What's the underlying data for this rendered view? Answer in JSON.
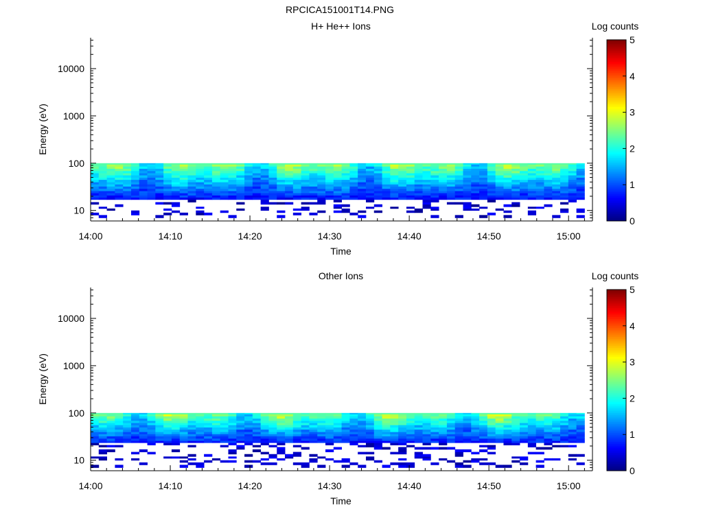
{
  "figure_title": "RPCICA151001T14.PNG",
  "colorscale": [
    "#00007f",
    "#0000ff",
    "#007fff",
    "#00ffff",
    "#7fff7f",
    "#ffff00",
    "#ff7f00",
    "#ff0000",
    "#7f0000"
  ],
  "chart_data": [
    {
      "type": "heatmap",
      "title": "H+ He++ Ions",
      "xlabel": "Time",
      "ylabel": "Energy (eV)",
      "yscale": "log",
      "ylim": [
        6,
        45000
      ],
      "xlim": [
        "14:00",
        "15:03"
      ],
      "xticks": [
        "14:00",
        "14:10",
        "14:20",
        "14:30",
        "14:40",
        "14:50",
        "15:00"
      ],
      "yticks": [
        "10",
        "100",
        "1000",
        "10000"
      ],
      "colorbar": {
        "label": "Log counts",
        "range": [
          0,
          5
        ],
        "ticks": [
          "0",
          "1",
          "2",
          "3",
          "4",
          "5"
        ]
      },
      "time_bins": 61,
      "time_start": "14:00",
      "time_end": "15:02",
      "energy_bins": [
        7.0,
        8.0,
        9.0,
        10.0,
        11.0,
        12.0,
        13.5,
        15.0,
        17.0,
        19.0,
        21.0,
        23.5,
        26.0,
        29.0,
        32.5,
        36.0,
        40.0,
        45.0,
        50.0,
        56.0,
        62.0,
        69.0,
        77.0,
        86.0,
        95.0
      ],
      "counts_log_pattern": "approximately 2.6-3.2 near 60-95 eV, decreasing to 1.0-1.5 around 20-30 eV, sparse values below 0.8 under 17 eV"
    },
    {
      "type": "heatmap",
      "title": "Other Ions",
      "xlabel": "Time",
      "ylabel": "Energy (eV)",
      "yscale": "log",
      "ylim": [
        6,
        45000
      ],
      "xlim": [
        "14:00",
        "15:03"
      ],
      "xticks": [
        "14:00",
        "14:10",
        "14:20",
        "14:30",
        "14:40",
        "14:50",
        "15:00"
      ],
      "yticks": [
        "10",
        "100",
        "1000",
        "10000"
      ],
      "colorbar": {
        "label": "Log counts",
        "range": [
          0,
          5
        ],
        "ticks": [
          "0",
          "1",
          "2",
          "3",
          "4",
          "5"
        ]
      },
      "time_bins": 61,
      "time_start": "14:00",
      "time_end": "15:02",
      "energy_bins": [
        7.0,
        8.0,
        9.0,
        10.0,
        11.0,
        12.0,
        13.5,
        15.0,
        17.0,
        19.0,
        21.0,
        23.5,
        26.0,
        29.0,
        32.5,
        36.0,
        40.0,
        45.0,
        50.0,
        56.0,
        62.0,
        69.0,
        77.0,
        86.0,
        95.0
      ],
      "counts_log_pattern": "approximately 2.7-3.3 near 60-95 eV, decreasing to 1.0-1.5 around 25-40 eV, sparse values below 0.8 under 22 eV"
    }
  ]
}
